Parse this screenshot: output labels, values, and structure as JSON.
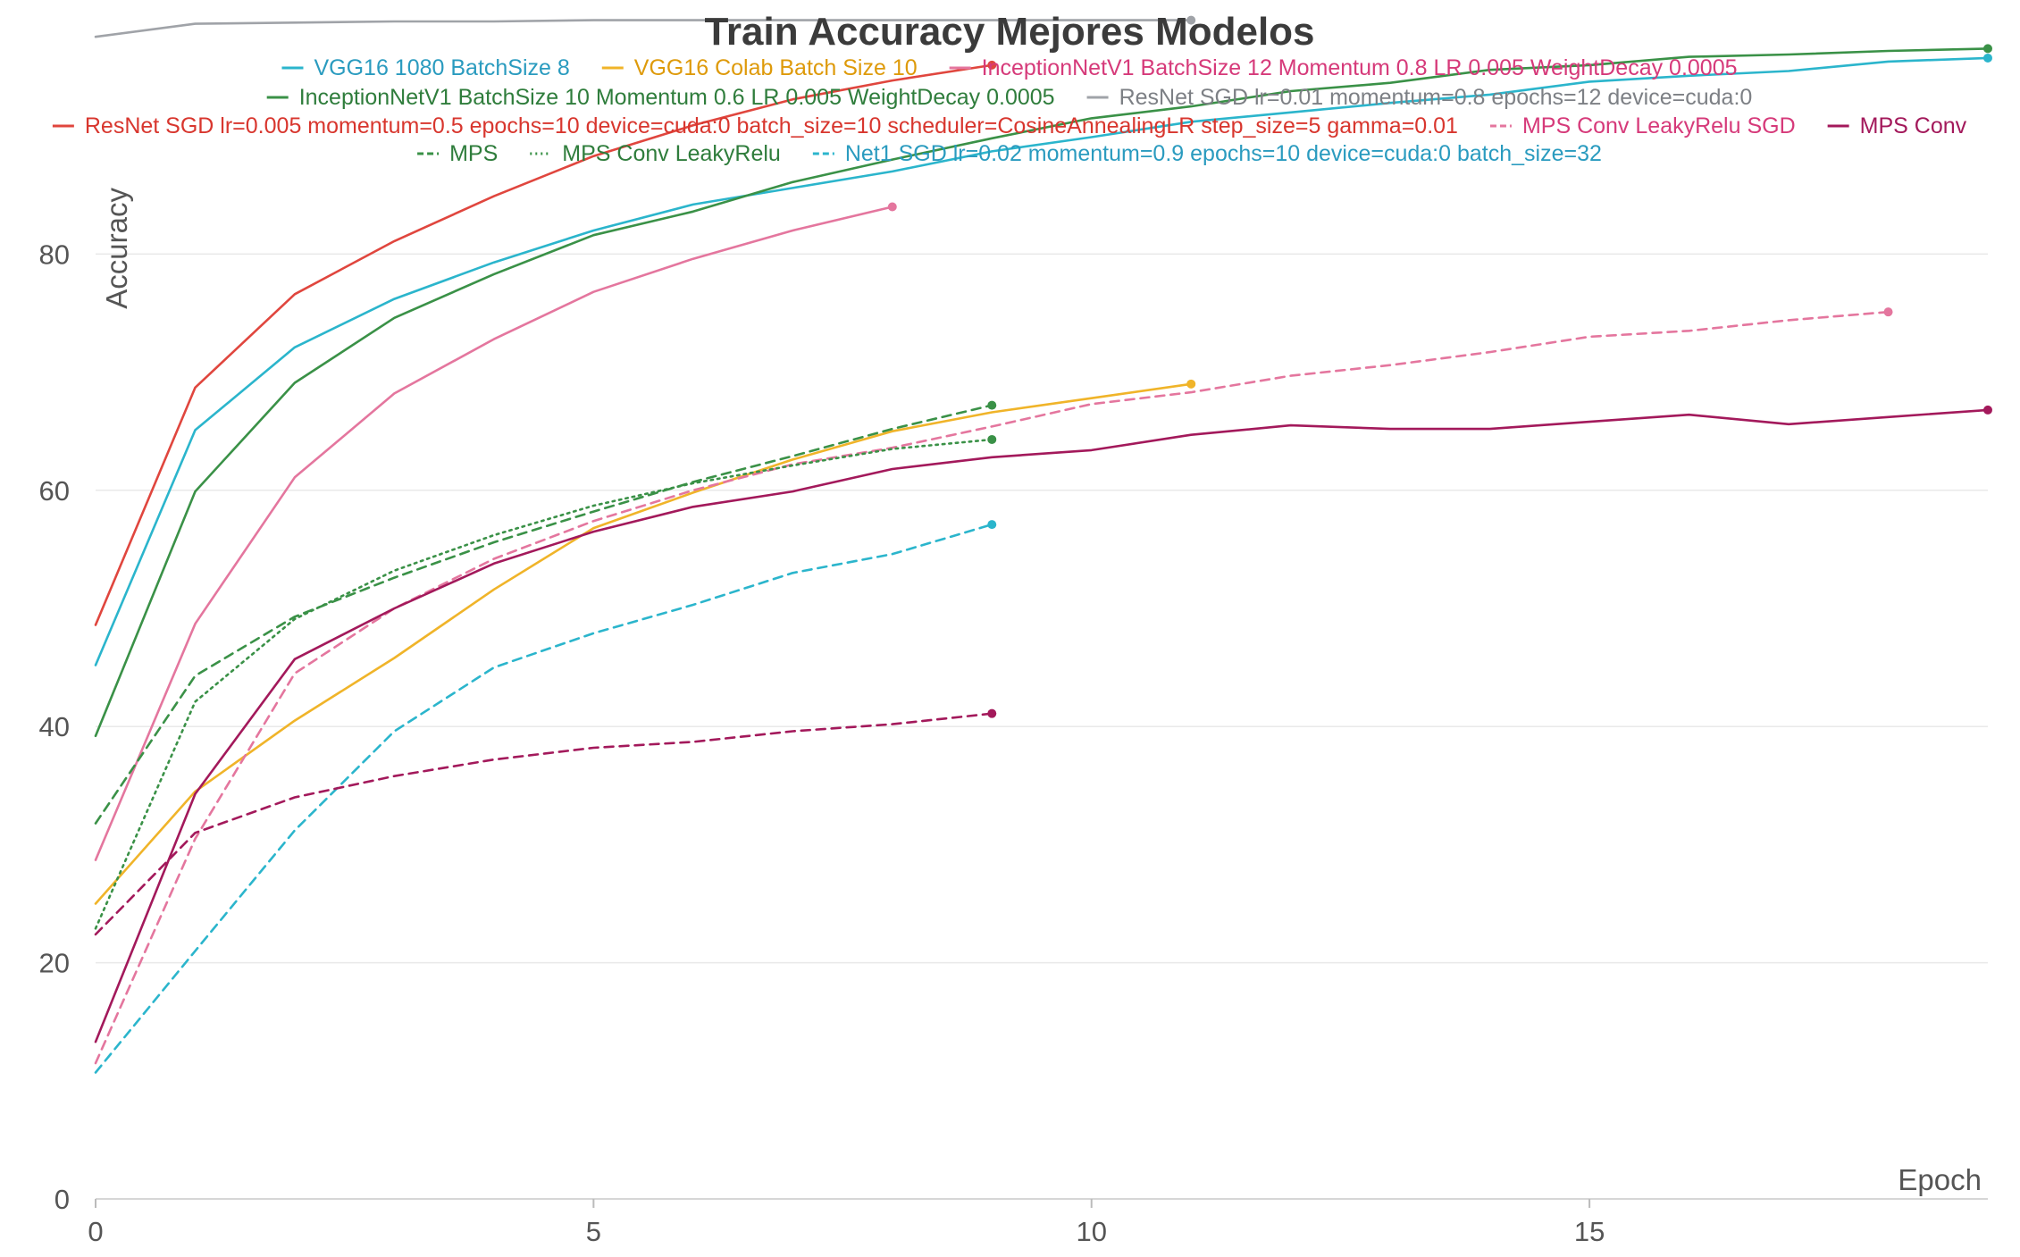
{
  "chart_data": {
    "type": "line",
    "title": "Train Accuracy Mejores Modelos",
    "xlabel": "Epoch",
    "ylabel": "Accuracy",
    "xlim": [
      0,
      19
    ],
    "ylim": [
      0,
      100
    ],
    "x_ticks": [
      0,
      5,
      10,
      15
    ],
    "y_ticks": [
      0,
      20,
      40,
      60,
      80
    ],
    "grid": true,
    "legend_position": "top",
    "series": [
      {
        "name": "VGG16 1080 BatchSize 8",
        "color": "#2bb5cc",
        "dash": "solid",
        "x": [
          0,
          1,
          2,
          3,
          4,
          5,
          6,
          7,
          8,
          9,
          10,
          11,
          12,
          13,
          14,
          15,
          16,
          17,
          18,
          19
        ],
        "values": [
          45.2,
          65.1,
          72.1,
          76.2,
          79.3,
          82.0,
          84.2,
          85.6,
          87.0,
          88.7,
          89.9,
          91.2,
          92.0,
          92.8,
          93.5,
          94.6,
          95.1,
          95.5,
          96.3,
          96.6
        ]
      },
      {
        "name": "VGG16 Colab Batch Size 10",
        "color": "#f0b429",
        "dash": "solid",
        "x": [
          0,
          1,
          2,
          3,
          4,
          5,
          6,
          7,
          8,
          9,
          10,
          11
        ],
        "values": [
          25.0,
          34.5,
          40.5,
          45.8,
          51.6,
          56.8,
          59.8,
          62.6,
          65.0,
          66.6,
          67.8,
          69.0
        ]
      },
      {
        "name": "InceptionNetV1 BatchSize 12 Momentum 0.8 LR 0.005 WeightDecay 0.0005",
        "color": "#e4769e",
        "dash": "solid",
        "x": [
          0,
          1,
          2,
          3,
          4,
          5,
          6,
          7,
          8
        ],
        "values": [
          28.7,
          48.7,
          61.1,
          68.2,
          72.8,
          76.8,
          79.6,
          82.0,
          84.0
        ]
      },
      {
        "name": "InceptionNetV1 BatchSize 10 Momentum 0.6 LR 0.005 WeightDecay 0.0005",
        "color": "#3a9147",
        "dash": "solid",
        "x": [
          0,
          1,
          2,
          3,
          4,
          5,
          6,
          7,
          8,
          9,
          10,
          11,
          12,
          13,
          14,
          15,
          16,
          17,
          18,
          19
        ],
        "values": [
          39.2,
          59.9,
          69.1,
          74.6,
          78.3,
          81.6,
          83.6,
          86.1,
          88.0,
          89.8,
          91.5,
          92.5,
          93.8,
          94.5,
          95.6,
          96.0,
          96.7,
          96.9,
          97.2,
          97.4
        ]
      },
      {
        "name": "ResNet SGD lr=0.01 momentum=0.8 epochs=12 device=cuda:0",
        "color": "#a0a3a8",
        "dash": "solid",
        "x": [
          0,
          1,
          2,
          3,
          4,
          5,
          6,
          7,
          8,
          9,
          10,
          11
        ],
        "values": [
          98.4,
          99.5,
          99.6,
          99.7,
          99.7,
          99.8,
          99.8,
          99.8,
          99.8,
          99.8,
          99.8,
          99.8
        ]
      },
      {
        "name": "ResNet SGD lr=0.005 momentum=0.5 epochs=10 device=cuda:0 batch_size=10 scheduler=CosineAnnealingLR step_size=5 gamma=0.01",
        "color": "#e0463e",
        "dash": "solid",
        "x": [
          0,
          1,
          2,
          3,
          4,
          5,
          6,
          7,
          8,
          9
        ],
        "values": [
          48.6,
          68.7,
          76.6,
          81.1,
          84.9,
          88.3,
          90.9,
          93.1,
          94.7,
          96.0
        ]
      },
      {
        "name": "MPS Conv LeakyRelu SGD",
        "color": "#e4769e",
        "dash": "dashed",
        "x": [
          0,
          1,
          2,
          3,
          4,
          5,
          6,
          7,
          8,
          9,
          10,
          11,
          12,
          13,
          14,
          15,
          16,
          17,
          18
        ],
        "values": [
          11.5,
          30.5,
          44.5,
          50.0,
          54.2,
          57.4,
          60.0,
          62.2,
          63.6,
          65.4,
          67.3,
          68.3,
          69.7,
          70.6,
          71.7,
          73.0,
          73.5,
          74.4,
          75.1
        ]
      },
      {
        "name": "MPS Conv",
        "color": "#a3195b",
        "dash": "solid",
        "x": [
          0,
          1,
          2,
          3,
          4,
          5,
          6,
          7,
          8,
          9,
          10,
          11,
          12,
          13,
          14,
          15,
          16,
          17,
          18,
          19
        ],
        "values": [
          13.3,
          34.3,
          45.7,
          50.0,
          53.8,
          56.5,
          58.6,
          59.9,
          61.8,
          62.8,
          63.4,
          64.7,
          65.5,
          65.2,
          65.2,
          65.8,
          66.4,
          65.6,
          66.2,
          66.8
        ]
      },
      {
        "name": "MPS",
        "color": "#3a9147",
        "dash": "dashed",
        "x": [
          0,
          1,
          2,
          3,
          4,
          5,
          6,
          7,
          8,
          9
        ],
        "values": [
          31.8,
          44.3,
          49.3,
          52.6,
          55.6,
          58.2,
          60.7,
          62.9,
          65.2,
          67.2
        ]
      },
      {
        "name": "MPS Conv LeakyRelu",
        "color": "#3a9147",
        "dash": "dotted",
        "x": [
          0,
          1,
          2,
          3,
          4,
          5,
          6,
          7,
          8,
          9
        ],
        "values": [
          22.9,
          42.1,
          49.1,
          53.2,
          56.2,
          58.7,
          60.6,
          62.1,
          63.5,
          64.3
        ]
      },
      {
        "name": "Net1 SGD lr=0.02 momentum=0.9 epochs=10 device=cuda:0 batch_size=32",
        "color": "#2bb5cc",
        "dash": "dashed",
        "x": [
          0,
          1,
          2,
          3,
          4,
          5,
          6,
          7,
          8,
          9
        ],
        "values": [
          10.7,
          21.0,
          31.2,
          39.6,
          45.0,
          47.9,
          50.3,
          53.0,
          54.6,
          57.1
        ]
      },
      {
        "name": "",
        "color": "#a3195b",
        "dash": "dashed",
        "x": [
          0,
          1,
          2,
          3,
          4,
          5,
          6,
          7,
          8,
          9
        ],
        "values": [
          22.4,
          31.0,
          34.0,
          35.8,
          37.2,
          38.2,
          38.7,
          39.6,
          40.2,
          41.1
        ]
      }
    ]
  }
}
